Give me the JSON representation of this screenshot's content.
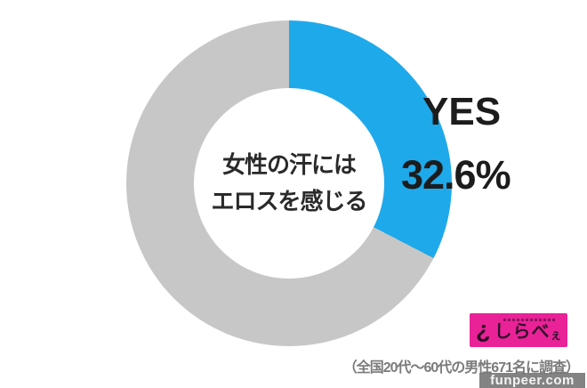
{
  "chart_data": {
    "type": "pie",
    "donut": true,
    "title": "女性の汗にはエロスを感じる",
    "center_label_lines": [
      "女性の汗には",
      "エロスを感じる"
    ],
    "start_angle_deg": 0,
    "direction": "clockwise",
    "legend_position": "none",
    "slices": [
      {
        "label": "YES",
        "value": 32.6,
        "value_display": "32.6%",
        "color": "#1ea9ea"
      },
      {
        "label": "",
        "value": 67.4,
        "value_display": "",
        "color": "#c7c7c7"
      }
    ]
  },
  "callout": {
    "label": "YES",
    "value": "32.6%"
  },
  "caption": "（全国20代～60代の男性671名に調査）",
  "logo": {
    "name": "しらべぇ",
    "text_main": "しらべ",
    "text_small": "ぇ",
    "icon_glyph": "¿",
    "bg_color": "#e92297",
    "text_color": "#31102b"
  },
  "watermark": {
    "text": "funpeer.com"
  },
  "colors": {
    "yes_slice": "#1ea9ea",
    "rest_slice": "#c7c7c7",
    "text_dark": "#1c1c1c",
    "caption_gray": "#7b7b7b",
    "logo_pink": "#e92297",
    "background": "#ffffff"
  }
}
